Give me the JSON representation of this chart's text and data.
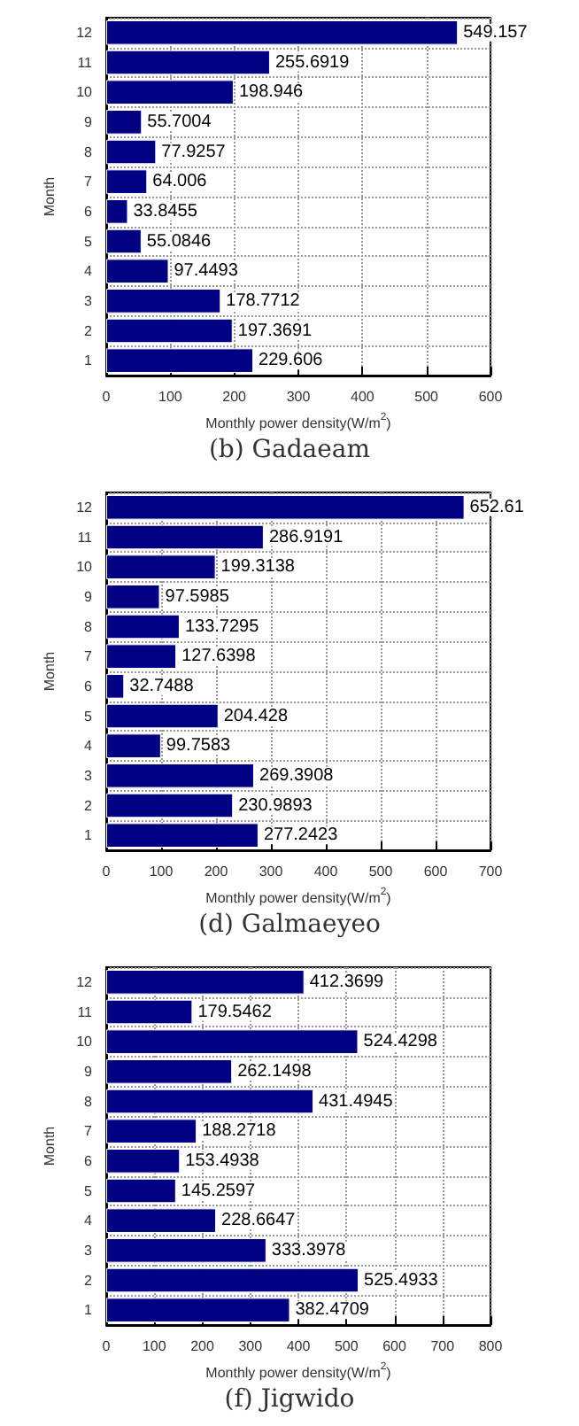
{
  "chart_data": [
    {
      "type": "bar",
      "orientation": "horizontal",
      "title": "(b) Gadaeam",
      "xlabel": "Monthly power density(W/m$^{2}$)",
      "ylabel": "Month",
      "categories": [
        "12",
        "11",
        "10",
        "9",
        "8",
        "7",
        "6",
        "5",
        "4",
        "3",
        "2",
        "1"
      ],
      "values": [
        549.157,
        255.6919,
        198.946,
        55.7004,
        77.9257,
        64.006,
        33.8455,
        55.0846,
        97.4493,
        178.7712,
        197.3691,
        229.606
      ],
      "color": "#000080",
      "xlim": [
        0,
        600
      ],
      "xticks": [
        0,
        100,
        200,
        300,
        400,
        500,
        600
      ],
      "grid": true,
      "data_labels": true
    },
    {
      "type": "bar",
      "orientation": "horizontal",
      "title": "(d) Galmaeyeo",
      "xlabel": "Monthly power density(W/m$^{2}$)",
      "ylabel": "Month",
      "categories": [
        "12",
        "11",
        "10",
        "9",
        "8",
        "7",
        "6",
        "5",
        "4",
        "3",
        "2",
        "1"
      ],
      "values": [
        652.61,
        286.9191,
        199.3138,
        97.5985,
        133.7295,
        127.6398,
        32.7488,
        204.428,
        99.7583,
        269.3908,
        230.9893,
        277.2423
      ],
      "color": "#000080",
      "xlim": [
        0,
        700
      ],
      "xticks": [
        0,
        100,
        200,
        300,
        400,
        500,
        600,
        700
      ],
      "grid": true,
      "data_labels": true
    },
    {
      "type": "bar",
      "orientation": "horizontal",
      "title": "(f) Jigwido",
      "xlabel": "Monthly power density(W/m$^{2}$)",
      "ylabel": "Month",
      "categories": [
        "12",
        "11",
        "10",
        "9",
        "8",
        "7",
        "6",
        "5",
        "4",
        "3",
        "2",
        "1"
      ],
      "values": [
        412.3699,
        179.5462,
        524.4298,
        262.1498,
        431.4945,
        188.2718,
        153.4938,
        145.2597,
        228.6647,
        333.3978,
        525.4933,
        382.4709
      ],
      "color": "#000080",
      "xlim": [
        0,
        800
      ],
      "xticks": [
        0,
        100,
        200,
        300,
        400,
        500,
        600,
        700,
        800
      ],
      "grid": true,
      "data_labels": true
    }
  ]
}
